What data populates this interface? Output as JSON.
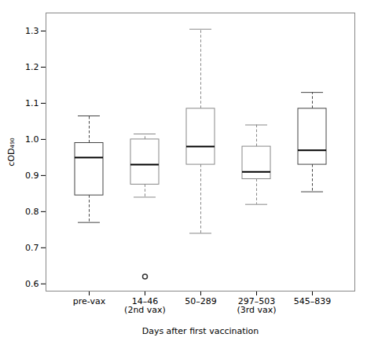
{
  "chart_data": {
    "type": "box",
    "categories": [
      "pre-vax",
      "14–46\n(2nd vax)",
      "50–289",
      "297–503\n(3rd vax)",
      "545–839"
    ],
    "boxes": [
      {
        "med": 0.95,
        "q1": 0.845,
        "q3": 0.99,
        "whislo": 0.77,
        "whishi": 1.065,
        "fliers": []
      },
      {
        "med": 0.93,
        "q1": 0.875,
        "q3": 1.0,
        "whislo": 0.84,
        "whishi": 1.015,
        "fliers": [
          0.62
        ]
      },
      {
        "med": 0.98,
        "q1": 0.93,
        "q3": 1.085,
        "whislo": 0.74,
        "whishi": 1.305,
        "fliers": []
      },
      {
        "med": 0.91,
        "q1": 0.89,
        "q3": 0.98,
        "whislo": 0.82,
        "whishi": 1.04,
        "fliers": []
      },
      {
        "med": 0.97,
        "q1": 0.93,
        "q3": 1.085,
        "whislo": 0.855,
        "whishi": 1.13,
        "fliers": []
      }
    ],
    "colors": [
      "#444444",
      "#888888",
      "#888888",
      "#888888",
      "#444444"
    ],
    "xlabel": "Days after first vaccination",
    "ylabel": "cOD₄₉₀",
    "ylim": [
      0.58,
      1.35
    ],
    "yticks": [
      0.6,
      0.7,
      0.8,
      0.9,
      {
        "value": 1.0,
        "label": "1.0"
      },
      1.1,
      1.2,
      1.3
    ],
    "grid": false
  }
}
